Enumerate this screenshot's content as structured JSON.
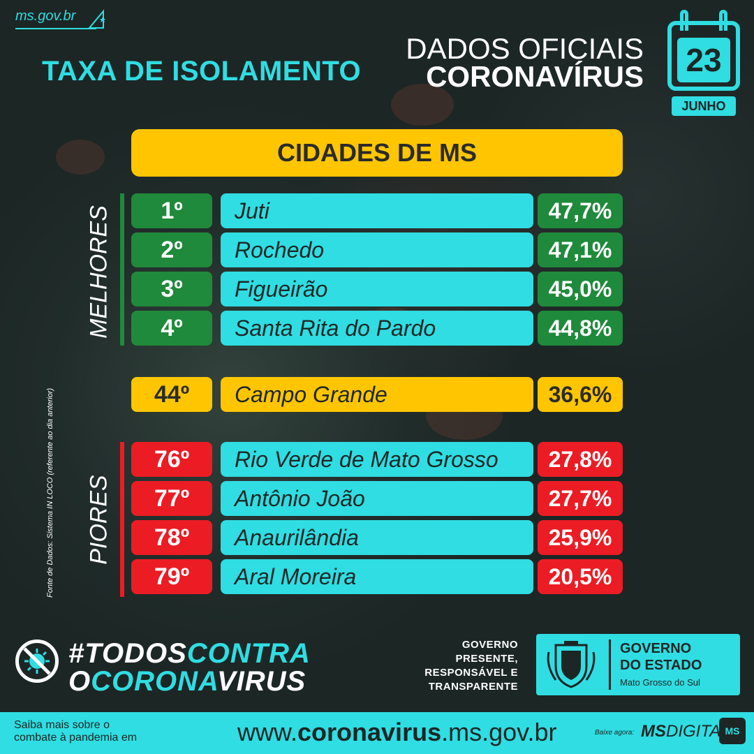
{
  "header": {
    "site": "ms.gov.br",
    "title": "TAXA DE ISOLAMENTO",
    "heading_line1": "DADOS OFICIAIS",
    "heading_line2": "CORONAVÍRUS",
    "calendar_day": "23",
    "calendar_month": "JUNHO"
  },
  "table": {
    "banner": "CIDADES DE MS",
    "best_label": "MELHORES",
    "worst_label": "PIORES",
    "best": [
      {
        "rank": "1º",
        "city": "Juti",
        "rate": "47,7%"
      },
      {
        "rank": "2º",
        "city": "Rochedo",
        "rate": "47,1%"
      },
      {
        "rank": "3º",
        "city": "Figueirão",
        "rate": "45,0%"
      },
      {
        "rank": "4º",
        "city": "Santa Rita do Pardo",
        "rate": "44,8%"
      }
    ],
    "highlight": {
      "rank": "44º",
      "city": "Campo Grande",
      "rate": "36,6%"
    },
    "worst": [
      {
        "rank": "76º",
        "city": "Rio Verde de Mato Grosso",
        "rate": "27,8%"
      },
      {
        "rank": "77º",
        "city": "Antônio João",
        "rate": "27,7%"
      },
      {
        "rank": "78º",
        "city": "Anaurilândia",
        "rate": "25,9%"
      },
      {
        "rank": "79º",
        "city": "Aral Moreira",
        "rate": "20,5%"
      }
    ],
    "source": "Fonte de Dados: Sistema IN LOCO (referente ao dia anterior)"
  },
  "campaign": {
    "tag_line1_a": "#TODOS",
    "tag_line1_b": "CONTRA",
    "tag_line2_a": "O",
    "tag_line2_b": "CORONA",
    "tag_line2_c": "VIRUS"
  },
  "government": {
    "slogan_line1": "GOVERNO",
    "slogan_line2": "PRESENTE,",
    "slogan_line3": "RESPONSÁVEL E",
    "slogan_line4": "TRANSPARENTE",
    "logo_line1": "GOVERNO",
    "logo_line2": "DO ESTADO",
    "logo_line3": "Mato Grosso do Sul"
  },
  "footer": {
    "left_line1": "Saiba mais sobre o",
    "left_line2": "combate à pandemia em",
    "url_prefix": "www.",
    "url_bold": "coronavirus",
    "url_suffix": ".ms.gov.br",
    "download_label": "Baixe agora:",
    "app_bold": "MS",
    "app_rest": "DIGITAL",
    "app_icon_text": "MS"
  },
  "colors": {
    "background": "#1c2625",
    "accent_cyan": "#2fdde2",
    "yellow": "#ffc600",
    "green": "#1f8a3b",
    "red": "#ec1c24"
  }
}
